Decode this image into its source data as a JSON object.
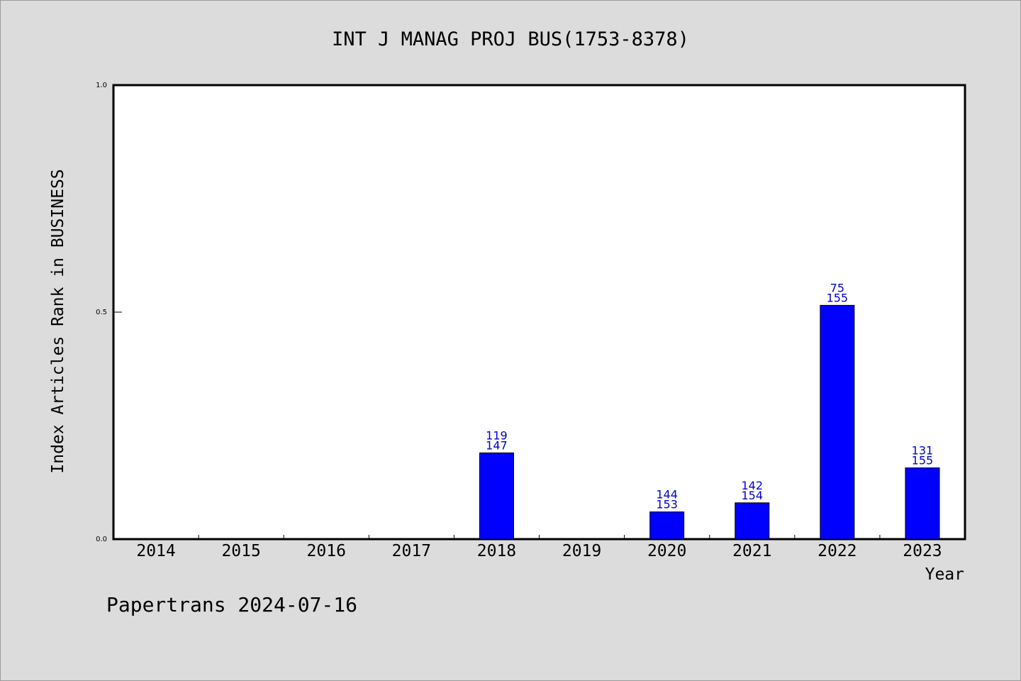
{
  "chart_data": {
    "type": "bar",
    "title": "INT J MANAG PROJ BUS(1753-8378)",
    "xlabel": "Year",
    "ylabel": "Index Articles Rank in BUSINESS",
    "categories": [
      "2014",
      "2015",
      "2016",
      "2017",
      "2018",
      "2019",
      "2020",
      "2021",
      "2022",
      "2023"
    ],
    "values": [
      null,
      null,
      null,
      null,
      0.19,
      null,
      0.06,
      0.08,
      0.515,
      0.157
    ],
    "data_labels": [
      null,
      null,
      null,
      null,
      {
        "rank": "119",
        "total": "147"
      },
      null,
      {
        "rank": "144",
        "total": "153"
      },
      {
        "rank": "142",
        "total": "154"
      },
      {
        "rank": "75",
        "total": "155"
      },
      {
        "rank": "131",
        "total": "155"
      }
    ],
    "yticks": [
      "0.0",
      "0.5",
      "1.0"
    ],
    "ylim": [
      0,
      1.0
    ],
    "grid": false,
    "colors": {
      "bar": "#0000ff",
      "label": "#0000cc",
      "background": "#dcdcdc",
      "plot": "#ffffff"
    }
  },
  "footer": "Papertrans 2024-07-16"
}
